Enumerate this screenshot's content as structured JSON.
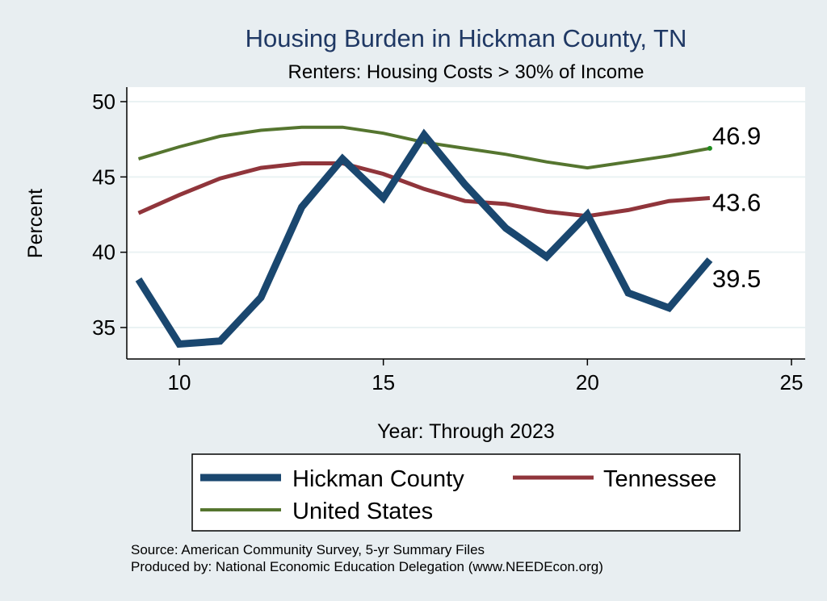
{
  "chart_data": {
    "type": "line",
    "title": "Housing Burden in Hickman County, TN",
    "subtitle": "Renters: Housing Costs > 30% of Income",
    "xlabel": "Year: Through 2023",
    "ylabel": "Percent",
    "xlim": [
      9,
      25
    ],
    "ylim": [
      33,
      51
    ],
    "x_ticks": [
      10,
      15,
      20,
      25
    ],
    "y_ticks": [
      35,
      40,
      45,
      50
    ],
    "grid": true,
    "legend_position": "bottom",
    "series": [
      {
        "name": "Hickman County",
        "color": "#1a476f",
        "x": [
          9,
          10,
          11,
          12,
          13,
          14,
          15,
          16,
          17,
          18,
          19,
          20,
          21,
          22,
          23
        ],
        "values": [
          38.2,
          33.9,
          34.1,
          37.0,
          43.0,
          46.2,
          43.6,
          47.8,
          44.5,
          41.6,
          39.7,
          42.5,
          37.3,
          36.3,
          39.5
        ],
        "end_label": "39.5"
      },
      {
        "name": "Tennessee",
        "color": "#90353b",
        "x": [
          9,
          10,
          11,
          12,
          13,
          14,
          15,
          16,
          17,
          18,
          19,
          20,
          21,
          22,
          23
        ],
        "values": [
          42.6,
          43.8,
          44.9,
          45.6,
          45.9,
          45.9,
          45.2,
          44.2,
          43.4,
          43.2,
          42.7,
          42.4,
          42.8,
          43.4,
          43.6
        ],
        "end_label": "43.6"
      },
      {
        "name": "United States",
        "color": "#55752f",
        "x": [
          9,
          10,
          11,
          12,
          13,
          14,
          15,
          16,
          17,
          18,
          19,
          20,
          21,
          22,
          23
        ],
        "values": [
          46.2,
          47.0,
          47.7,
          48.1,
          48.3,
          48.3,
          47.9,
          47.3,
          46.9,
          46.5,
          46.0,
          45.6,
          46.0,
          46.4,
          46.9
        ],
        "end_label": "46.9"
      }
    ],
    "notes": [
      "Source: American Community Survey, 5-yr Summary Files",
      "Produced by: National Economic Education Delegation (www.NEEDEcon.org)"
    ]
  }
}
